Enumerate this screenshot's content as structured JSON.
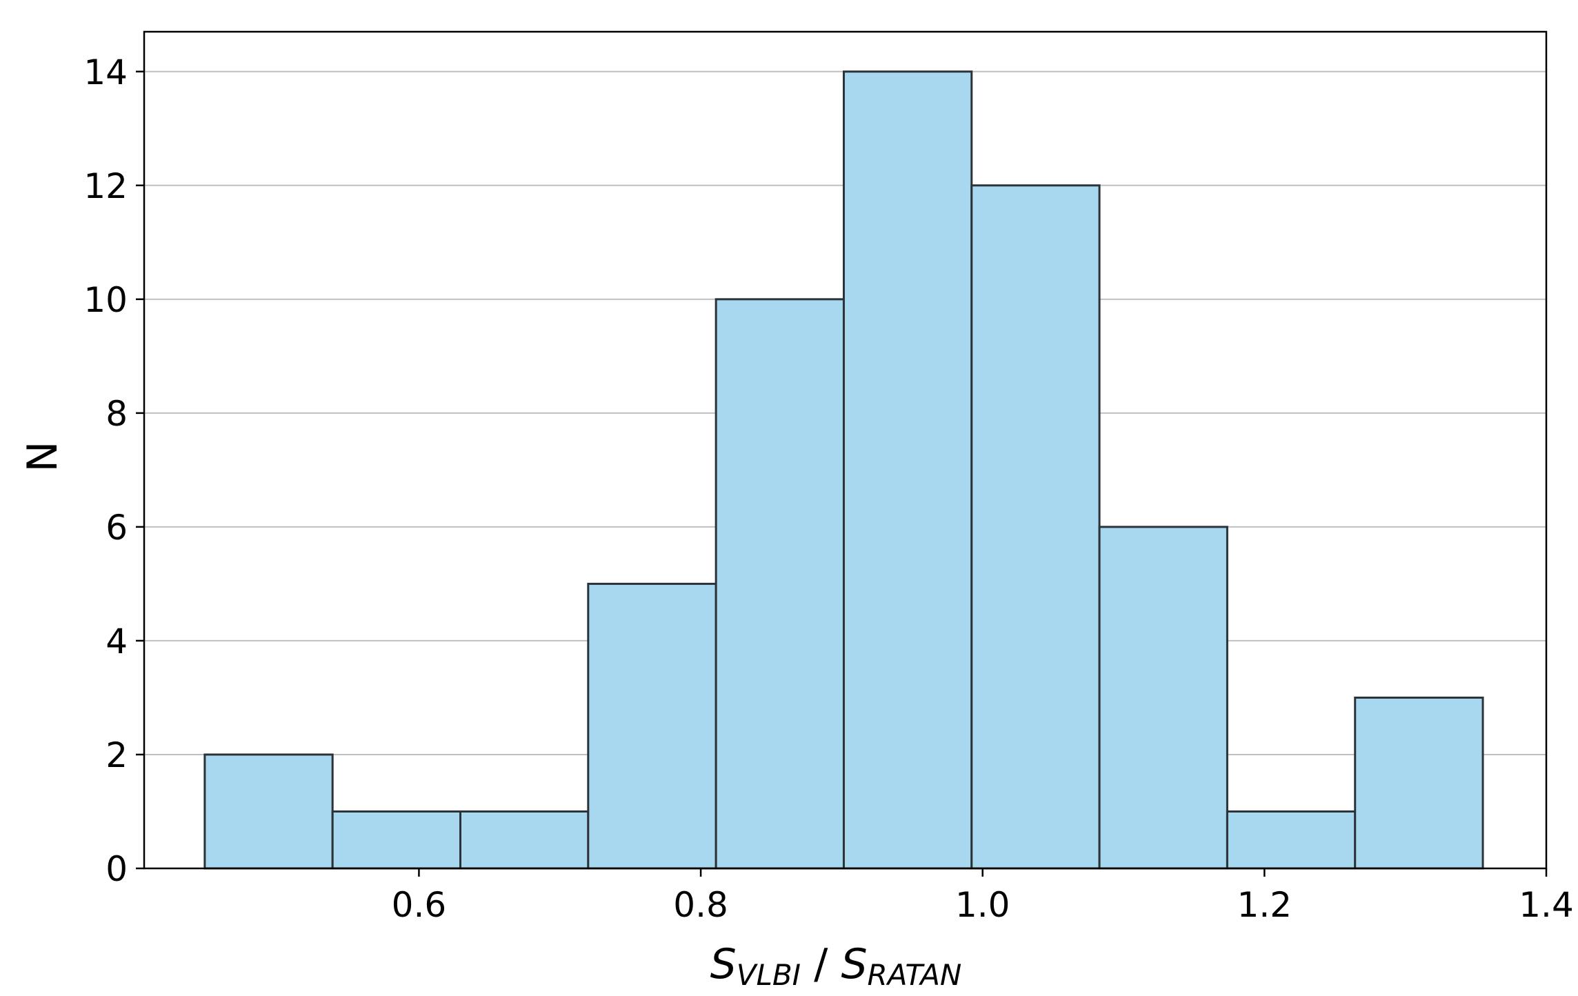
{
  "chart_data": {
    "type": "bar",
    "subtype": "histogram",
    "bin_edges": [
      0.448,
      0.5387,
      0.6294,
      0.7201,
      0.8108,
      0.9015,
      0.9922,
      1.0829,
      1.1736,
      1.2643,
      1.355
    ],
    "values": [
      2,
      1,
      1,
      5,
      10,
      14,
      12,
      6,
      1,
      3
    ],
    "xlim": [
      0.405,
      1.4
    ],
    "ylim": [
      0,
      14.7
    ],
    "xticks": [
      0.6,
      0.8,
      1.0,
      1.2,
      1.4
    ],
    "xtick_labels": [
      "0.6",
      "0.8",
      "1.0",
      "1.2",
      "1.4"
    ],
    "yticks": [
      0,
      2,
      4,
      6,
      8,
      10,
      12,
      14
    ],
    "ytick_labels": [
      "0",
      "2",
      "4",
      "6",
      "8",
      "10",
      "12",
      "14"
    ],
    "xlabel": {
      "s1": "S",
      "sub1": "VLBI",
      "sep": " / ",
      "s2": "S",
      "sub2": "RATAN"
    },
    "ylabel": "N",
    "grid": "y-major",
    "colors": {
      "bar_fill": "#a7d8ef",
      "bar_edge": "#2b3339",
      "grid": "#c0c0c0",
      "axes": "#000000"
    }
  }
}
